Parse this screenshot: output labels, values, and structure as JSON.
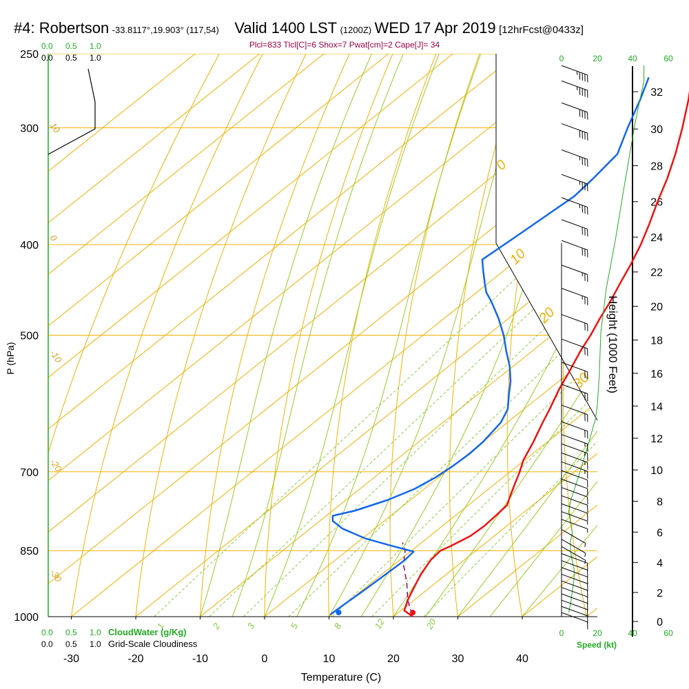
{
  "header": {
    "station": "#4: Robertson",
    "coords": "-33.8117°,19.903° (117,54)",
    "valid": "Valid 1400 LST",
    "utc": "(1200Z)",
    "date": "WED 17 Apr 2019",
    "forecast": "[12hrFcst@0433z]"
  },
  "params_line": "Plcl=833 Tlcl[C]=6 Shox=7 Pwat[cm]=2 Cape[J]= 34",
  "colors": {
    "temperature": "#ee1111",
    "dewpoint": "#1166ee",
    "isotherm": "#f0b000",
    "dry_adiabat": "#f0b000",
    "moist_adiabat": "#99cc22",
    "mixing_ratio": "#88cc44",
    "parcel": "#880088",
    "green_label": "#22aa22",
    "purple_label": "#990040"
  },
  "chart_data": {
    "type": "skew-t",
    "xlabel": "Temperature (C)",
    "ylabel": "P (hPa)",
    "right_axis_label": "Height (1000 Feet)",
    "xlim": [
      -35,
      50
    ],
    "ylim_pressure": [
      1000,
      250
    ],
    "x_ticks": [
      -30,
      -20,
      -10,
      0,
      10,
      20,
      30,
      40
    ],
    "pressure_ticks": [
      250,
      300,
      400,
      500,
      700,
      850,
      1000
    ],
    "height_ticks": [
      0,
      2,
      4,
      6,
      8,
      10,
      12,
      14,
      16,
      18,
      20,
      22,
      24,
      26,
      28,
      30,
      32
    ],
    "temperature_profile": [
      {
        "p": 1000,
        "t": 23.0
      },
      {
        "p": 985,
        "t": 20.5
      },
      {
        "p": 960,
        "t": 19.0
      },
      {
        "p": 930,
        "t": 17.5
      },
      {
        "p": 900,
        "t": 16.0
      },
      {
        "p": 870,
        "t": 14.8
      },
      {
        "p": 850,
        "t": 14.5
      },
      {
        "p": 840,
        "t": 15.2
      },
      {
        "p": 820,
        "t": 16.3
      },
      {
        "p": 800,
        "t": 16.5
      },
      {
        "p": 780,
        "t": 16.3
      },
      {
        "p": 760,
        "t": 16.0
      },
      {
        "p": 740,
        "t": 14.5
      },
      {
        "p": 720,
        "t": 13.0
      },
      {
        "p": 700,
        "t": 11.5
      },
      {
        "p": 680,
        "t": 9.8
      },
      {
        "p": 650,
        "t": 7.8
      },
      {
        "p": 620,
        "t": 5.5
      },
      {
        "p": 600,
        "t": 4.0
      },
      {
        "p": 570,
        "t": 1.5
      },
      {
        "p": 550,
        "t": 0.0
      },
      {
        "p": 520,
        "t": -2.5
      },
      {
        "p": 500,
        "t": -4.0
      },
      {
        "p": 480,
        "t": -5.8
      },
      {
        "p": 460,
        "t": -7.5
      },
      {
        "p": 440,
        "t": -9.5
      },
      {
        "p": 420,
        "t": -11.5
      },
      {
        "p": 400,
        "t": -13.8
      },
      {
        "p": 380,
        "t": -16.5
      },
      {
        "p": 360,
        "t": -19.5
      },
      {
        "p": 340,
        "t": -22.5
      },
      {
        "p": 320,
        "t": -26.0
      },
      {
        "p": 300,
        "t": -30.0
      },
      {
        "p": 280,
        "t": -34.5
      },
      {
        "p": 270,
        "t": -37.0
      },
      {
        "p": 260,
        "t": -39.8
      }
    ],
    "dewpoint_profile": [
      {
        "p": 995,
        "t": 9.8
      },
      {
        "p": 970,
        "t": 10.0
      },
      {
        "p": 940,
        "t": 10.3
      },
      {
        "p": 900,
        "t": 10.6
      },
      {
        "p": 870,
        "t": 10.8
      },
      {
        "p": 852,
        "t": 10.5
      },
      {
        "p": 840,
        "t": 6.0
      },
      {
        "p": 825,
        "t": 0.5
      },
      {
        "p": 805,
        "t": -5.0
      },
      {
        "p": 790,
        "t": -8.0
      },
      {
        "p": 780,
        "t": -9.0
      },
      {
        "p": 770,
        "t": -6.5
      },
      {
        "p": 750,
        "t": -3.5
      },
      {
        "p": 730,
        "t": -1.5
      },
      {
        "p": 710,
        "t": -0.5
      },
      {
        "p": 690,
        "t": 0.0
      },
      {
        "p": 670,
        "t": 0.2
      },
      {
        "p": 650,
        "t": 0.0
      },
      {
        "p": 620,
        "t": -1.0
      },
      {
        "p": 600,
        "t": -2.5
      },
      {
        "p": 580,
        "t": -5.0
      },
      {
        "p": 560,
        "t": -7.5
      },
      {
        "p": 540,
        "t": -10.5
      },
      {
        "p": 520,
        "t": -14.0
      },
      {
        "p": 500,
        "t": -17.5
      },
      {
        "p": 480,
        "t": -21.5
      },
      {
        "p": 460,
        "t": -26.0
      },
      {
        "p": 450,
        "t": -28.5
      },
      {
        "p": 440,
        "t": -30.5
      },
      {
        "p": 425,
        "t": -33.5
      },
      {
        "p": 415,
        "t": -35.5
      },
      {
        "p": 400,
        "t": -35.0
      },
      {
        "p": 385,
        "t": -34.5
      },
      {
        "p": 370,
        "t": -34.0
      },
      {
        "p": 355,
        "t": -33.5
      },
      {
        "p": 340,
        "t": -34.0
      },
      {
        "p": 320,
        "t": -35.0
      },
      {
        "p": 300,
        "t": -38.5
      },
      {
        "p": 280,
        "t": -42.0
      },
      {
        "p": 265,
        "t": -45.0
      }
    ],
    "parcel_path": [
      {
        "p": 995,
        "t": 22.5
      },
      {
        "p": 960,
        "t": 19.0
      },
      {
        "p": 920,
        "t": 15.5
      },
      {
        "p": 880,
        "t": 11.5
      },
      {
        "p": 850,
        "t": 9.0
      },
      {
        "p": 833,
        "t": 7.0
      }
    ],
    "surface_temperature_marker": {
      "p": 1000,
      "t": 23.0
    },
    "surface_dewpoint_marker": {
      "p": 1000,
      "t": 11.5
    },
    "isotherm_labels_left": [
      "10",
      "0",
      "-10",
      "-20",
      "-30"
    ],
    "isotherm_labels_right": [
      "0",
      "10",
      "20",
      "30"
    ],
    "mixing_ratio_labels": [
      "1",
      "2",
      "3",
      "5",
      "8",
      "12",
      "20"
    ],
    "wind_speed_axis_ticks": [
      "0",
      "20",
      "40",
      "60"
    ],
    "wind_speed_axis_label": "Speed (kt)",
    "cloud_water_scale": [
      "0.0",
      "0.5",
      "1.0"
    ],
    "cloud_water_label": "CloudWater (g/Kg)",
    "cloudiness_scale": [
      "0.0",
      "0.5",
      "1.0"
    ],
    "cloudiness_label": "Grid-Scale Cloudiness",
    "wind_speed_profile": [
      {
        "p": 1000,
        "kt": 4
      },
      {
        "p": 980,
        "kt": 5
      },
      {
        "p": 950,
        "kt": 6
      },
      {
        "p": 920,
        "kt": 7
      },
      {
        "p": 900,
        "kt": 7
      },
      {
        "p": 880,
        "kt": 6
      },
      {
        "p": 860,
        "kt": 5
      },
      {
        "p": 840,
        "kt": 5
      },
      {
        "p": 820,
        "kt": 6
      },
      {
        "p": 800,
        "kt": 5
      },
      {
        "p": 780,
        "kt": 4
      },
      {
        "p": 760,
        "kt": 5
      },
      {
        "p": 740,
        "kt": 7
      },
      {
        "p": 720,
        "kt": 9
      },
      {
        "p": 700,
        "kt": 11
      },
      {
        "p": 680,
        "kt": 13
      },
      {
        "p": 660,
        "kt": 15
      },
      {
        "p": 640,
        "kt": 17
      },
      {
        "p": 620,
        "kt": 19
      },
      {
        "p": 600,
        "kt": 20
      },
      {
        "p": 560,
        "kt": 21
      },
      {
        "p": 500,
        "kt": 22
      },
      {
        "p": 450,
        "kt": 25
      },
      {
        "p": 400,
        "kt": 30
      },
      {
        "p": 350,
        "kt": 35
      },
      {
        "p": 300,
        "kt": 41
      },
      {
        "p": 270,
        "kt": 46
      },
      {
        "p": 260,
        "kt": 46
      }
    ],
    "cloudiness_profile": [
      {
        "p": 250,
        "v": 0.35
      },
      {
        "p": 265,
        "v": 0.35
      },
      {
        "p": 280,
        "v": 0.35
      },
      {
        "p": 300,
        "v": 0.35
      },
      {
        "p": 325,
        "v": 0.0
      }
    ],
    "wind_barbs": [
      {
        "p": 1000,
        "dir": 290,
        "spd": 10
      },
      {
        "p": 985,
        "dir": 290,
        "spd": 10
      },
      {
        "p": 970,
        "dir": 290,
        "spd": 10
      },
      {
        "p": 955,
        "dir": 290,
        "spd": 10
      },
      {
        "p": 940,
        "dir": 290,
        "spd": 10
      },
      {
        "p": 925,
        "dir": 290,
        "spd": 10
      },
      {
        "p": 910,
        "dir": 290,
        "spd": 10
      },
      {
        "p": 895,
        "dir": 290,
        "spd": 10
      },
      {
        "p": 880,
        "dir": 290,
        "spd": 10
      },
      {
        "p": 865,
        "dir": 290,
        "spd": 10
      },
      {
        "p": 850,
        "dir": 300,
        "spd": 5
      },
      {
        "p": 835,
        "dir": 300,
        "spd": 5
      },
      {
        "p": 815,
        "dir": 300,
        "spd": 5
      },
      {
        "p": 795,
        "dir": 290,
        "spd": 5
      },
      {
        "p": 780,
        "dir": 290,
        "spd": 5
      },
      {
        "p": 765,
        "dir": 290,
        "spd": 10
      },
      {
        "p": 750,
        "dir": 290,
        "spd": 10
      },
      {
        "p": 735,
        "dir": 290,
        "spd": 10
      },
      {
        "p": 720,
        "dir": 290,
        "spd": 10
      },
      {
        "p": 705,
        "dir": 290,
        "spd": 10
      },
      {
        "p": 690,
        "dir": 290,
        "spd": 15
      },
      {
        "p": 675,
        "dir": 290,
        "spd": 15
      },
      {
        "p": 660,
        "dir": 290,
        "spd": 15
      },
      {
        "p": 645,
        "dir": 290,
        "spd": 15
      },
      {
        "p": 625,
        "dir": 290,
        "spd": 20
      },
      {
        "p": 600,
        "dir": 290,
        "spd": 20
      },
      {
        "p": 570,
        "dir": 290,
        "spd": 20
      },
      {
        "p": 540,
        "dir": 290,
        "spd": 20
      },
      {
        "p": 510,
        "dir": 290,
        "spd": 20
      },
      {
        "p": 480,
        "dir": 290,
        "spd": 20
      },
      {
        "p": 450,
        "dir": 290,
        "spd": 25
      },
      {
        "p": 425,
        "dir": 290,
        "spd": 25
      },
      {
        "p": 400,
        "dir": 290,
        "spd": 30
      },
      {
        "p": 380,
        "dir": 290,
        "spd": 30
      },
      {
        "p": 360,
        "dir": 290,
        "spd": 35
      },
      {
        "p": 340,
        "dir": 290,
        "spd": 35
      },
      {
        "p": 320,
        "dir": 290,
        "spd": 35
      },
      {
        "p": 300,
        "dir": 290,
        "spd": 40
      },
      {
        "p": 285,
        "dir": 290,
        "spd": 40
      },
      {
        "p": 270,
        "dir": 290,
        "spd": 45
      },
      {
        "p": 260,
        "dir": 290,
        "spd": 45
      }
    ]
  }
}
